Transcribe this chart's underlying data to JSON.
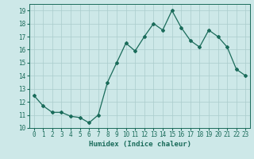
{
  "x": [
    0,
    1,
    2,
    3,
    4,
    5,
    6,
    7,
    8,
    9,
    10,
    11,
    12,
    13,
    14,
    15,
    16,
    17,
    18,
    19,
    20,
    21,
    22,
    23
  ],
  "y": [
    12.5,
    11.7,
    11.2,
    11.2,
    10.9,
    10.8,
    10.4,
    11.0,
    13.5,
    15.0,
    16.5,
    15.9,
    17.0,
    18.0,
    17.5,
    19.0,
    17.7,
    16.7,
    16.2,
    17.5,
    17.0,
    16.2,
    14.5,
    14.0
  ],
  "line_color": "#1a6b5a",
  "marker": "D",
  "marker_size": 2.0,
  "bg_color": "#cde8e8",
  "grid_color": "#aacccc",
  "xlabel": "Humidex (Indice chaleur)",
  "xlim": [
    -0.5,
    23.5
  ],
  "ylim": [
    10,
    19.5
  ],
  "yticks": [
    10,
    11,
    12,
    13,
    14,
    15,
    16,
    17,
    18,
    19
  ],
  "xticks": [
    0,
    1,
    2,
    3,
    4,
    5,
    6,
    7,
    8,
    9,
    10,
    11,
    12,
    13,
    14,
    15,
    16,
    17,
    18,
    19,
    20,
    21,
    22,
    23
  ],
  "xlabel_fontsize": 6.5,
  "tick_fontsize": 5.5
}
